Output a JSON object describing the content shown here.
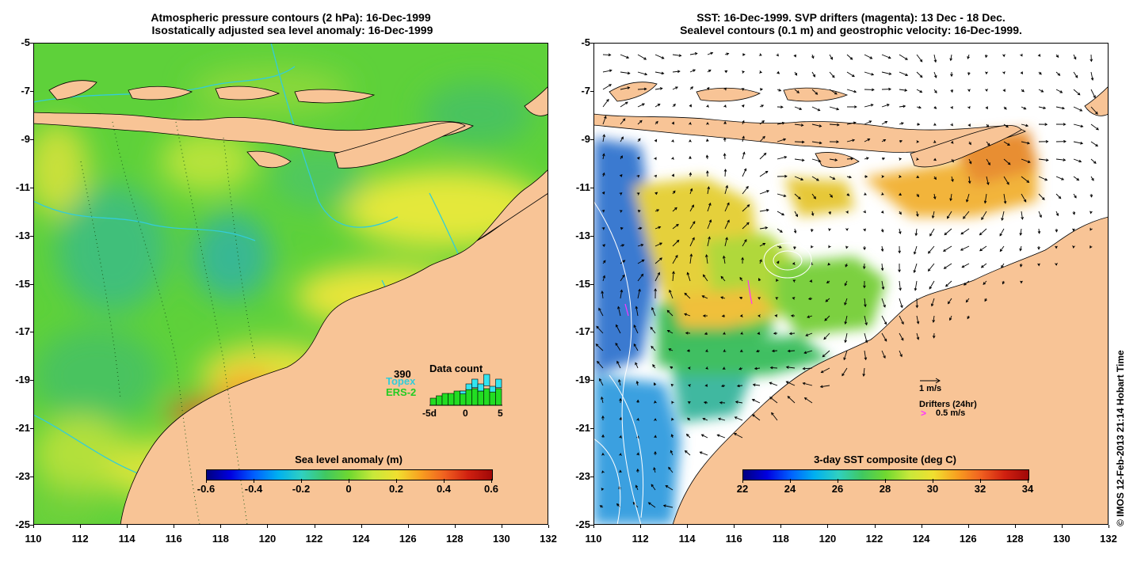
{
  "left_panel": {
    "title_line1": "Atmospheric pressure contours (2 hPa): 16-Dec-1999",
    "title_line2": " Isostatically adjusted sea level anomaly: 16-Dec-1999",
    "colorbar": {
      "label": "Sea level anomaly (m)",
      "ticks": [
        "-0.6",
        "-0.4",
        "-0.2",
        "0",
        "0.2",
        "0.4",
        "0.6"
      ],
      "range": [
        -0.6,
        0.6
      ]
    },
    "data_count": {
      "title": "Data count",
      "total": "390",
      "topex_label": "Topex",
      "ers2_label": "ERS-2",
      "ticks": [
        "-5d",
        "0",
        "5"
      ],
      "topex_values": [
        0,
        0,
        0,
        0,
        0,
        2,
        4,
        6,
        5,
        8,
        4,
        6
      ],
      "ers2_values": [
        3,
        4,
        5,
        5,
        6,
        6,
        7,
        7,
        6,
        7,
        6,
        7
      ]
    }
  },
  "right_panel": {
    "title_line1": "SST: 16-Dec-1999. SVP drifters (magenta): 13 Dec - 18 Dec.",
    "title_line2": "Sealevel contours (0.1 m) and geostrophic velocity: 16-Dec-1999.",
    "colorbar": {
      "label": "3-day SST composite (deg C)",
      "ticks": [
        "22",
        "24",
        "26",
        "28",
        "30",
        "32",
        "34"
      ],
      "range": [
        22,
        34
      ]
    },
    "velocity_legend": "1 m/s",
    "drifter_legend": "Drifters (24hr)",
    "drifter_speed": "0.5 m/s",
    "drifter_marker": ">"
  },
  "axes": {
    "lat_ticks": [
      "-5",
      "-7",
      "-9",
      "-11",
      "-13",
      "-15",
      "-17",
      "-19",
      "-21",
      "-23",
      "-25"
    ],
    "lon_ticks": [
      "110",
      "112",
      "114",
      "116",
      "118",
      "120",
      "122",
      "124",
      "126",
      "128",
      "130",
      "132"
    ]
  },
  "credit": "© IMOS 12-Feb-2013 21:14 Hobart Time",
  "colors": {
    "land": "#f8c496",
    "cyan": "#33ccd9",
    "drifter_magenta": "#ff33ff"
  }
}
